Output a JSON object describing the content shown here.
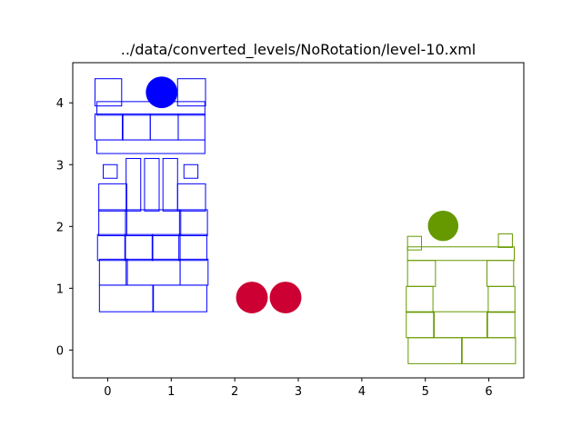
{
  "chart_data": {
    "type": "scatter",
    "title": "../data/converted_levels/NoRotation/level-10.xml",
    "xlabel": "",
    "ylabel": "",
    "xlim": [
      -0.55,
      6.55
    ],
    "ylim": [
      -0.45,
      4.65
    ],
    "grid": false,
    "x_ticks": [
      0,
      1,
      2,
      3,
      4,
      5,
      6
    ],
    "y_ticks": [
      0,
      1,
      2,
      3,
      4
    ],
    "x_tick_labels": [
      "0",
      "1",
      "2",
      "3",
      "4",
      "5",
      "6"
    ],
    "y_tick_labels": [
      "0",
      "1",
      "2",
      "3",
      "4"
    ],
    "colors": {
      "blue_structure": "#0000ff",
      "green_structure": "#669900",
      "pigs": "#cc0033"
    },
    "blocks": [
      {
        "structure": "blue",
        "x": -0.2,
        "y": 3.95,
        "w": 0.42,
        "h": 0.44
      },
      {
        "structure": "blue",
        "x": 1.1,
        "y": 3.95,
        "w": 0.44,
        "h": 0.44
      },
      {
        "structure": "blue",
        "x": -0.17,
        "y": 3.8,
        "w": 1.7,
        "h": 0.22
      },
      {
        "structure": "blue",
        "x": -0.2,
        "y": 3.4,
        "w": 0.44,
        "h": 0.42
      },
      {
        "structure": "blue",
        "x": 0.23,
        "y": 3.4,
        "w": 0.44,
        "h": 0.42
      },
      {
        "structure": "blue",
        "x": 0.67,
        "y": 3.4,
        "w": 0.44,
        "h": 0.42
      },
      {
        "structure": "blue",
        "x": 1.11,
        "y": 3.4,
        "w": 0.42,
        "h": 0.42
      },
      {
        "structure": "blue",
        "x": -0.17,
        "y": 3.18,
        "w": 1.7,
        "h": 0.22
      },
      {
        "structure": "blue",
        "x": -0.07,
        "y": 2.78,
        "w": 0.22,
        "h": 0.22
      },
      {
        "structure": "blue",
        "x": 1.2,
        "y": 2.78,
        "w": 0.22,
        "h": 0.22
      },
      {
        "structure": "blue",
        "x": 0.29,
        "y": 2.25,
        "w": 0.23,
        "h": 0.85
      },
      {
        "structure": "blue",
        "x": 0.58,
        "y": 2.25,
        "w": 0.23,
        "h": 0.85
      },
      {
        "structure": "blue",
        "x": 0.87,
        "y": 2.25,
        "w": 0.23,
        "h": 0.85
      },
      {
        "structure": "blue",
        "x": -0.14,
        "y": 2.25,
        "w": 0.44,
        "h": 0.44
      },
      {
        "structure": "blue",
        "x": 1.1,
        "y": 2.25,
        "w": 0.44,
        "h": 0.44
      },
      {
        "structure": "blue",
        "x": -0.14,
        "y": 1.85,
        "w": 0.44,
        "h": 0.42
      },
      {
        "structure": "blue",
        "x": 0.28,
        "y": 1.85,
        "w": 0.87,
        "h": 0.42
      },
      {
        "structure": "blue",
        "x": 1.13,
        "y": 1.85,
        "w": 0.44,
        "h": 0.42
      },
      {
        "structure": "blue",
        "x": -0.16,
        "y": 1.45,
        "w": 0.44,
        "h": 0.42
      },
      {
        "structure": "blue",
        "x": 0.27,
        "y": 1.45,
        "w": 0.44,
        "h": 0.42
      },
      {
        "structure": "blue",
        "x": 0.7,
        "y": 1.45,
        "w": 0.44,
        "h": 0.42
      },
      {
        "structure": "blue",
        "x": 1.12,
        "y": 1.45,
        "w": 0.44,
        "h": 0.42
      },
      {
        "structure": "blue",
        "x": -0.13,
        "y": 1.05,
        "w": 0.44,
        "h": 0.42
      },
      {
        "structure": "blue",
        "x": 0.29,
        "y": 1.05,
        "w": 0.85,
        "h": 0.42
      },
      {
        "structure": "blue",
        "x": 1.14,
        "y": 1.05,
        "w": 0.44,
        "h": 0.42
      },
      {
        "structure": "blue",
        "x": -0.13,
        "y": 0.62,
        "w": 0.85,
        "h": 0.43
      },
      {
        "structure": "blue",
        "x": 0.71,
        "y": 0.62,
        "w": 0.85,
        "h": 0.43
      },
      {
        "structure": "green",
        "x": 4.72,
        "y": 1.62,
        "w": 0.22,
        "h": 0.22
      },
      {
        "structure": "green",
        "x": 6.15,
        "y": 1.66,
        "w": 0.22,
        "h": 0.22
      },
      {
        "structure": "green",
        "x": 4.72,
        "y": 1.45,
        "w": 1.68,
        "h": 0.22
      },
      {
        "structure": "green",
        "x": 4.72,
        "y": 1.03,
        "w": 0.44,
        "h": 0.42
      },
      {
        "structure": "green",
        "x": 5.97,
        "y": 1.03,
        "w": 0.42,
        "h": 0.42
      },
      {
        "structure": "green",
        "x": 4.7,
        "y": 0.61,
        "w": 0.42,
        "h": 0.42
      },
      {
        "structure": "green",
        "x": 5.99,
        "y": 0.61,
        "w": 0.42,
        "h": 0.42
      },
      {
        "structure": "green",
        "x": 4.7,
        "y": 0.2,
        "w": 0.44,
        "h": 0.42
      },
      {
        "structure": "green",
        "x": 5.13,
        "y": 0.2,
        "w": 0.85,
        "h": 0.42
      },
      {
        "structure": "green",
        "x": 5.97,
        "y": 0.2,
        "w": 0.44,
        "h": 0.42
      },
      {
        "structure": "green",
        "x": 4.73,
        "y": -0.22,
        "w": 0.85,
        "h": 0.42
      },
      {
        "structure": "green",
        "x": 5.57,
        "y": -0.22,
        "w": 0.85,
        "h": 0.42
      }
    ],
    "circles": [
      {
        "structure": "blue",
        "x": 0.85,
        "y": 4.17,
        "r": 0.25
      },
      {
        "structure": "green",
        "x": 5.28,
        "y": 2.01,
        "r": 0.24
      },
      {
        "structure": "pig",
        "x": 2.27,
        "y": 0.85,
        "r": 0.25
      },
      {
        "structure": "pig",
        "x": 2.8,
        "y": 0.85,
        "r": 0.25
      }
    ]
  }
}
